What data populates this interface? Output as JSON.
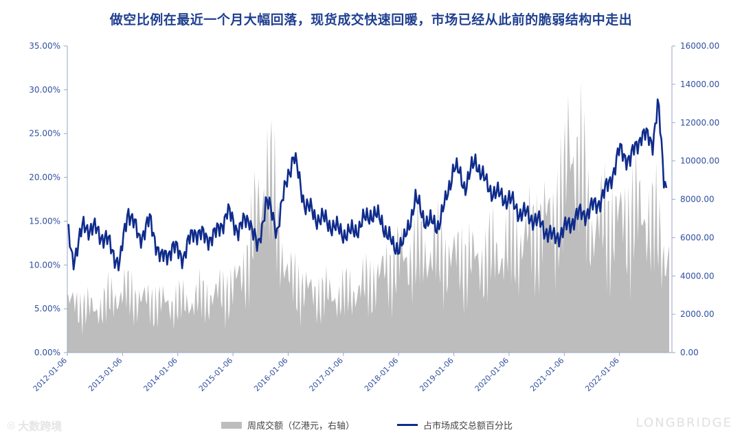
{
  "chart_data": {
    "type": "line",
    "title": "做空比例在最近一个月大幅回落，现货成交快速回暖，市场已经从此前的脆弱结构中走出",
    "x_ticks": [
      "2012-01-06",
      "2013-01-06",
      "2014-01-06",
      "2015-01-06",
      "2016-01-06",
      "2017-01-06",
      "2018-01-06",
      "2019-01-06",
      "2020-01-06",
      "2021-01-06",
      "2022-01-06"
    ],
    "y_left": {
      "ticks": [
        "0.00%",
        "5.00%",
        "10.00%",
        "15.00%",
        "20.00%",
        "25.00%",
        "30.00%",
        "35.00%"
      ],
      "range": [
        0,
        35
      ]
    },
    "y_right": {
      "ticks": [
        "0.00",
        "2000.00",
        "4000.00",
        "6000.00",
        "8000.00",
        "10000.00",
        "12000.00",
        "14000.00",
        "16000.00"
      ],
      "range": [
        0,
        16000
      ]
    },
    "series": [
      {
        "name": "周成交额（亿港元，右轴）",
        "type": "area",
        "axis": "right",
        "color": "#bdbdbd",
        "x": [
          2012.0,
          2012.5,
          2013.0,
          2013.5,
          2014.0,
          2014.5,
          2015.0,
          2015.3,
          2015.6,
          2016.0,
          2016.5,
          2017.0,
          2017.5,
          2018.0,
          2018.5,
          2019.0,
          2019.5,
          2020.0,
          2020.5,
          2021.0,
          2021.1,
          2021.5,
          2022.0,
          2022.5,
          2022.8
        ],
        "values": [
          2600,
          2200,
          3100,
          2600,
          2500,
          2800,
          3300,
          5000,
          9500,
          3800,
          3000,
          2900,
          3600,
          4800,
          5200,
          4900,
          4700,
          5400,
          6200,
          7800,
          11500,
          6500,
          6800,
          7200,
          5200
        ]
      },
      {
        "name": "占市场成交总额百分比",
        "type": "line",
        "axis": "left",
        "color": "#0f2c8c",
        "x": [
          2012.0,
          2012.1,
          2012.3,
          2012.5,
          2012.7,
          2012.95,
          2013.1,
          2013.3,
          2013.5,
          2013.7,
          2013.9,
          2014.1,
          2014.3,
          2014.5,
          2014.7,
          2014.9,
          2015.1,
          2015.3,
          2015.45,
          2015.6,
          2015.8,
          2016.0,
          2016.1,
          2016.3,
          2016.5,
          2016.7,
          2016.9,
          2017.1,
          2017.3,
          2017.5,
          2017.7,
          2017.9,
          2018.1,
          2018.3,
          2018.5,
          2018.7,
          2018.85,
          2019.0,
          2019.2,
          2019.4,
          2019.6,
          2019.8,
          2020.0,
          2020.2,
          2020.4,
          2020.6,
          2020.8,
          2021.0,
          2021.2,
          2021.4,
          2021.6,
          2021.8,
          2022.0,
          2022.2,
          2022.4,
          2022.6,
          2022.7,
          2022.8,
          2022.85
        ],
        "values": [
          14.0,
          10.5,
          14.5,
          14.0,
          13.0,
          10.0,
          16.5,
          13.0,
          15.0,
          10.5,
          12.0,
          11.0,
          14.0,
          13.0,
          13.5,
          16.0,
          14.0,
          15.5,
          11.5,
          17.5,
          14.0,
          20.5,
          22.5,
          17.0,
          15.5,
          15.0,
          14.0,
          13.5,
          14.5,
          16.0,
          15.0,
          12.0,
          12.5,
          17.5,
          15.0,
          14.5,
          17.0,
          21.5,
          19.0,
          22.0,
          19.0,
          18.0,
          17.5,
          16.0,
          15.5,
          14.5,
          13.0,
          14.0,
          15.5,
          16.0,
          17.0,
          19.0,
          23.0,
          22.0,
          25.0,
          24.0,
          28.5,
          20.0,
          19.0
        ]
      }
    ]
  },
  "legend": {
    "area_label": "周成交额（亿港元，右轴）",
    "line_label": "占市场成交总额百分比"
  },
  "watermark": {
    "left": "大数跨境",
    "right": "LONGBRIDGE"
  }
}
